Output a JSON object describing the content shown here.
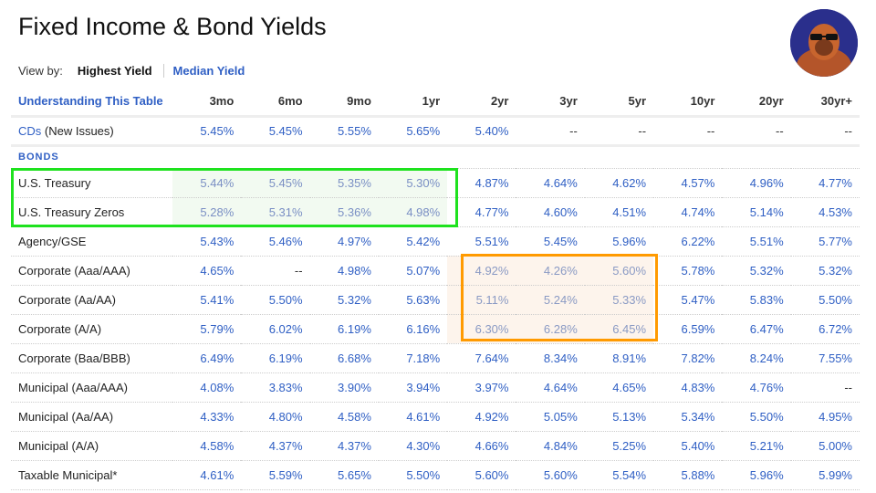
{
  "title": "Fixed Income & Bond Yields",
  "view_by": {
    "label": "View by:",
    "options": [
      "Highest Yield",
      "Median Yield"
    ],
    "selected": "Highest Yield"
  },
  "table": {
    "header_link": "Understanding This Table",
    "columns": [
      "3mo",
      "6mo",
      "9mo",
      "1yr",
      "2yr",
      "3yr",
      "5yr",
      "10yr",
      "20yr",
      "30yr+"
    ],
    "cds": {
      "link": "CDs",
      "suffix": " (New Issues)",
      "values": [
        "5.45%",
        "5.45%",
        "5.55%",
        "5.65%",
        "5.40%",
        "--",
        "--",
        "--",
        "--",
        "--"
      ]
    },
    "section": "BONDS",
    "rows": [
      {
        "label": "U.S. Treasury",
        "values": [
          "5.44%",
          "5.45%",
          "5.35%",
          "5.30%",
          "4.87%",
          "4.64%",
          "4.62%",
          "4.57%",
          "4.96%",
          "4.77%"
        ]
      },
      {
        "label": "U.S. Treasury Zeros",
        "values": [
          "5.28%",
          "5.31%",
          "5.36%",
          "4.98%",
          "4.77%",
          "4.60%",
          "4.51%",
          "4.74%",
          "5.14%",
          "4.53%"
        ]
      },
      {
        "label": "Agency/GSE",
        "values": [
          "5.43%",
          "5.46%",
          "4.97%",
          "5.42%",
          "5.51%",
          "5.45%",
          "5.96%",
          "6.22%",
          "5.51%",
          "5.77%"
        ]
      },
      {
        "label": "Corporate (Aaa/AAA)",
        "values": [
          "4.65%",
          "--",
          "4.98%",
          "5.07%",
          "4.92%",
          "4.26%",
          "5.60%",
          "5.78%",
          "5.32%",
          "5.32%"
        ]
      },
      {
        "label": "Corporate (Aa/AA)",
        "values": [
          "5.41%",
          "5.50%",
          "5.32%",
          "5.63%",
          "5.11%",
          "5.24%",
          "5.33%",
          "5.47%",
          "5.83%",
          "5.50%"
        ]
      },
      {
        "label": "Corporate (A/A)",
        "values": [
          "5.79%",
          "6.02%",
          "6.19%",
          "6.16%",
          "6.30%",
          "6.28%",
          "6.45%",
          "6.59%",
          "6.47%",
          "6.72%"
        ]
      },
      {
        "label": "Corporate (Baa/BBB)",
        "values": [
          "6.49%",
          "6.19%",
          "6.68%",
          "7.18%",
          "7.64%",
          "8.34%",
          "8.91%",
          "7.82%",
          "8.24%",
          "7.55%"
        ]
      },
      {
        "label": "Municipal (Aaa/AAA)",
        "values": [
          "4.08%",
          "3.83%",
          "3.90%",
          "3.94%",
          "3.97%",
          "4.64%",
          "4.65%",
          "4.83%",
          "4.76%",
          "--"
        ]
      },
      {
        "label": "Municipal (Aa/AA)",
        "values": [
          "4.33%",
          "4.80%",
          "4.58%",
          "4.61%",
          "4.92%",
          "5.05%",
          "5.13%",
          "5.34%",
          "5.50%",
          "4.95%"
        ]
      },
      {
        "label": "Municipal (A/A)",
        "values": [
          "4.58%",
          "4.37%",
          "4.37%",
          "4.30%",
          "4.66%",
          "4.84%",
          "5.25%",
          "5.40%",
          "5.21%",
          "5.00%"
        ]
      },
      {
        "label": "Taxable Municipal*",
        "values": [
          "4.61%",
          "5.59%",
          "5.65%",
          "5.50%",
          "5.60%",
          "5.60%",
          "5.54%",
          "5.88%",
          "5.96%",
          "5.99%"
        ]
      }
    ]
  },
  "highlights": {
    "green": "#1ee21e",
    "orange": "#ff9a00"
  }
}
